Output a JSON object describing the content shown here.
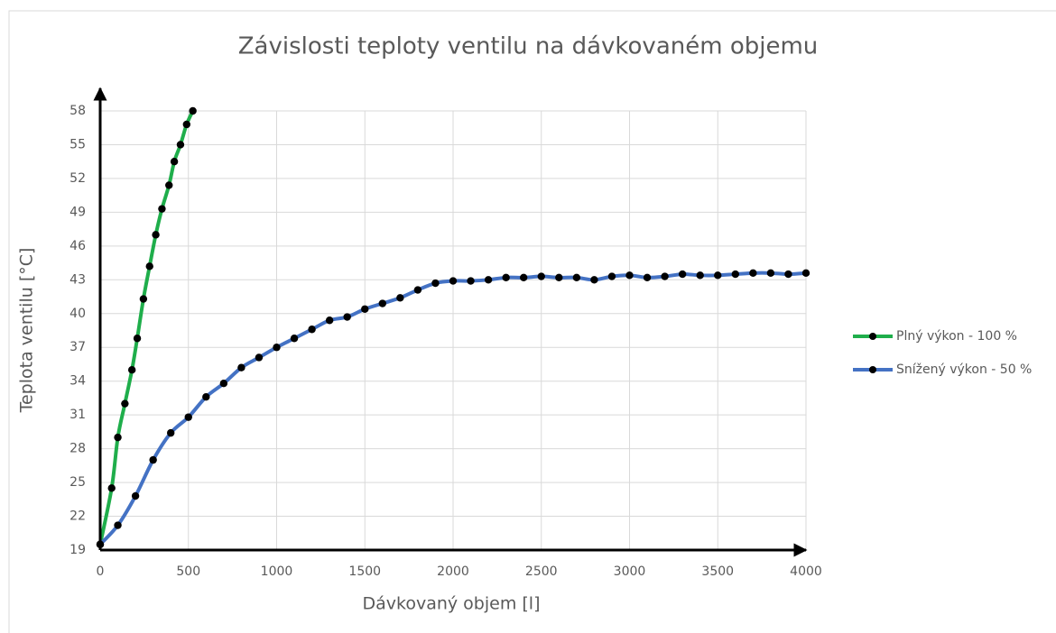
{
  "chart_data": {
    "type": "line",
    "title": "Závislosti teploty ventilu na dávkovaném objemu",
    "x_label": "Dávkovaný objem [l]",
    "y_label": "Teplota ventilu [°C]",
    "xlim": [
      0,
      4000
    ],
    "xticks": [
      0,
      500,
      1000,
      1500,
      2000,
      2500,
      3000,
      3500,
      4000
    ],
    "ylim": [
      19,
      58
    ],
    "yticks": [
      19,
      22,
      25,
      28,
      31,
      34,
      37,
      40,
      43,
      46,
      49,
      52,
      55,
      58
    ],
    "grid": true,
    "legend": "right",
    "series": [
      {
        "name": "Plný výkon - 100 %",
        "color": "#1fae4b",
        "x": [
          0,
          65,
          100,
          140,
          180,
          210,
          245,
          280,
          315,
          350,
          390,
          420,
          455,
          490,
          525
        ],
        "values": [
          19.5,
          24.5,
          29,
          32,
          35,
          37.8,
          41.3,
          44.2,
          47,
          49.3,
          51.4,
          53.5,
          55,
          56.8,
          58
        ]
      },
      {
        "name": "Snížený výkon - 50 %",
        "color": "#4472c4",
        "x": [
          0,
          100,
          200,
          300,
          400,
          500,
          600,
          700,
          800,
          900,
          1000,
          1100,
          1200,
          1300,
          1400,
          1500,
          1600,
          1700,
          1800,
          1900,
          2000,
          2100,
          2200,
          2300,
          2400,
          2500,
          2600,
          2700,
          2800,
          2900,
          3000,
          3100,
          3200,
          3300,
          3400,
          3500,
          3600,
          3700,
          3800,
          3900,
          4000
        ],
        "values": [
          19.5,
          21.2,
          23.8,
          27,
          29.4,
          30.8,
          32.6,
          33.8,
          35.2,
          36.1,
          37,
          37.8,
          38.6,
          39.4,
          39.7,
          40.4,
          40.9,
          41.4,
          42.1,
          42.7,
          42.9,
          42.9,
          43,
          43.2,
          43.2,
          43.3,
          43.2,
          43.2,
          43,
          43.3,
          43.4,
          43.2,
          43.3,
          43.5,
          43.4,
          43.4,
          43.5,
          43.6,
          43.6,
          43.5,
          43.6
        ]
      }
    ]
  }
}
